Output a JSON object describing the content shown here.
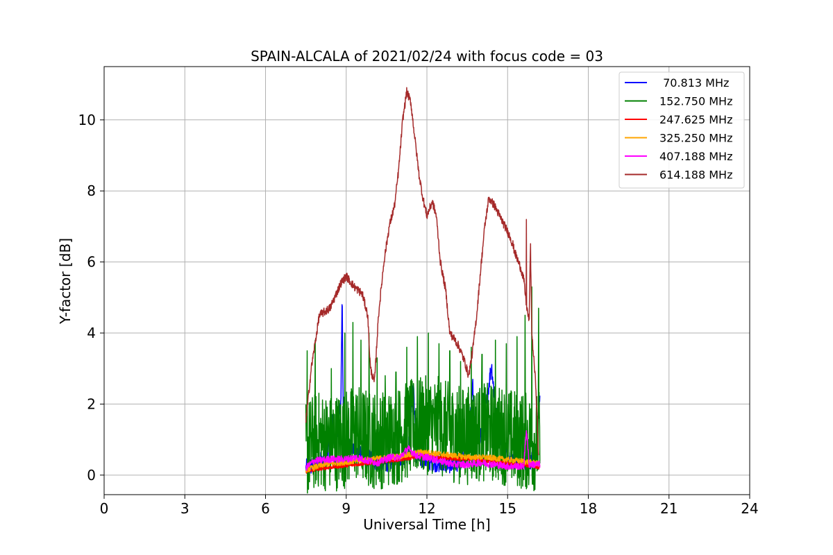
{
  "chart_data": {
    "type": "line",
    "title": "SPAIN-ALCALA of 2021/02/24 with focus code = 03",
    "xlabel": "Universal Time [h]",
    "ylabel": "Y-factor [dB]",
    "xlim": [
      0,
      24
    ],
    "ylim": [
      -0.55,
      11.5
    ],
    "xticks": [
      0,
      3,
      6,
      9,
      12,
      15,
      18,
      21,
      24
    ],
    "yticks": [
      0,
      2,
      4,
      6,
      8,
      10
    ],
    "grid": true,
    "legend_position": "top-right",
    "series": [
      {
        "name": " 70.813 MHz",
        "color": "#0000ff",
        "points": [
          [
            7.5,
            0.2
          ],
          [
            7.9,
            0.3
          ],
          [
            8.3,
            0.6
          ],
          [
            8.5,
            1.5
          ],
          [
            8.6,
            0.8
          ],
          [
            8.8,
            2.0
          ],
          [
            8.85,
            5.1
          ],
          [
            8.9,
            0.9
          ],
          [
            9.3,
            0.7
          ],
          [
            9.8,
            0.5
          ],
          [
            10.3,
            0.3
          ],
          [
            10.8,
            0.4
          ],
          [
            11.3,
            0.6
          ],
          [
            11.5,
            2.6
          ],
          [
            11.6,
            0.5
          ],
          [
            12.0,
            0.4
          ],
          [
            12.5,
            0.3
          ],
          [
            13.0,
            0.3
          ],
          [
            13.5,
            0.5
          ],
          [
            13.7,
            2.6
          ],
          [
            13.8,
            0.7
          ],
          [
            14.1,
            1.4
          ],
          [
            14.4,
            3.1
          ],
          [
            14.6,
            1.5
          ],
          [
            14.9,
            0.6
          ],
          [
            15.3,
            0.4
          ],
          [
            15.7,
            0.3
          ],
          [
            16.0,
            0.5
          ],
          [
            16.2,
            2.0
          ]
        ],
        "noise": 0.25
      },
      {
        "name": "152.750 MHz",
        "color": "#008000",
        "points": [
          [
            7.5,
            0.7
          ],
          [
            7.9,
            1.0
          ],
          [
            8.4,
            0.9
          ],
          [
            8.9,
            1.0
          ],
          [
            9.4,
            1.2
          ],
          [
            9.9,
            1.0
          ],
          [
            10.4,
            1.0
          ],
          [
            10.9,
            1.1
          ],
          [
            11.4,
            1.3
          ],
          [
            11.9,
            1.4
          ],
          [
            12.4,
            1.4
          ],
          [
            12.9,
            1.2
          ],
          [
            13.4,
            1.1
          ],
          [
            13.9,
            1.2
          ],
          [
            14.4,
            1.2
          ],
          [
            14.9,
            1.1
          ],
          [
            15.4,
            1.0
          ],
          [
            15.9,
            0.9
          ],
          [
            16.2,
            1.0
          ]
        ],
        "noise": 1.4,
        "spikes": [
          [
            7.55,
            3.5
          ],
          [
            7.85,
            3.8
          ],
          [
            8.45,
            3.0
          ],
          [
            8.95,
            4.0
          ],
          [
            9.25,
            4.3
          ],
          [
            9.55,
            3.8
          ],
          [
            9.85,
            4.0
          ],
          [
            10.15,
            3.3
          ],
          [
            10.45,
            2.8
          ],
          [
            10.85,
            2.9
          ],
          [
            11.25,
            3.6
          ],
          [
            11.65,
            3.9
          ],
          [
            12.05,
            4.0
          ],
          [
            12.45,
            3.7
          ],
          [
            12.85,
            3.5
          ],
          [
            13.25,
            3.2
          ],
          [
            13.65,
            3.6
          ],
          [
            14.05,
            3.4
          ],
          [
            14.55,
            3.8
          ],
          [
            14.95,
            3.7
          ],
          [
            15.35,
            3.9
          ],
          [
            15.65,
            4.5
          ],
          [
            15.9,
            5.3
          ],
          [
            16.15,
            4.7
          ]
        ]
      },
      {
        "name": "247.625 MHz",
        "color": "#ff0000",
        "points": [
          [
            7.5,
            0.1
          ],
          [
            8.2,
            0.2
          ],
          [
            8.8,
            0.25
          ],
          [
            9.4,
            0.3
          ],
          [
            10.0,
            0.35
          ],
          [
            10.6,
            0.4
          ],
          [
            11.2,
            0.45
          ],
          [
            11.8,
            0.55
          ],
          [
            12.4,
            0.5
          ],
          [
            13.0,
            0.45
          ],
          [
            13.6,
            0.45
          ],
          [
            14.2,
            0.4
          ],
          [
            14.8,
            0.35
          ],
          [
            15.4,
            0.3
          ],
          [
            16.0,
            0.25
          ],
          [
            16.2,
            0.2
          ]
        ],
        "noise": 0.05
      },
      {
        "name": "325.250 MHz",
        "color": "#ffa500",
        "points": [
          [
            7.5,
            0.15
          ],
          [
            8.2,
            0.3
          ],
          [
            8.8,
            0.35
          ],
          [
            9.4,
            0.4
          ],
          [
            10.0,
            0.45
          ],
          [
            10.6,
            0.5
          ],
          [
            11.2,
            0.55
          ],
          [
            11.8,
            0.65
          ],
          [
            12.4,
            0.6
          ],
          [
            13.0,
            0.55
          ],
          [
            13.6,
            0.5
          ],
          [
            14.2,
            0.5
          ],
          [
            14.8,
            0.45
          ],
          [
            15.4,
            0.4
          ],
          [
            16.0,
            0.35
          ],
          [
            16.2,
            0.3
          ]
        ],
        "noise": 0.08
      },
      {
        "name": "407.188 MHz",
        "color": "#ff00ff",
        "points": [
          [
            7.5,
            0.2
          ],
          [
            7.8,
            0.4
          ],
          [
            8.4,
            0.45
          ],
          [
            9.0,
            0.45
          ],
          [
            9.4,
            0.5
          ],
          [
            9.8,
            0.4
          ],
          [
            10.2,
            0.35
          ],
          [
            10.6,
            0.5
          ],
          [
            11.0,
            0.5
          ],
          [
            11.3,
            0.75
          ],
          [
            11.6,
            0.55
          ],
          [
            12.0,
            0.5
          ],
          [
            12.5,
            0.4
          ],
          [
            13.0,
            0.3
          ],
          [
            13.5,
            0.3
          ],
          [
            14.0,
            0.35
          ],
          [
            14.5,
            0.3
          ],
          [
            15.0,
            0.25
          ],
          [
            15.6,
            0.25
          ],
          [
            15.7,
            1.3
          ],
          [
            15.8,
            0.3
          ],
          [
            16.2,
            0.3
          ]
        ],
        "noise": 0.1
      },
      {
        "name": "614.188 MHz",
        "color": "#a52a2a",
        "points": [
          [
            7.5,
            1.5
          ],
          [
            7.7,
            3.0
          ],
          [
            8.0,
            4.5
          ],
          [
            8.4,
            4.7
          ],
          [
            8.8,
            5.4
          ],
          [
            9.0,
            5.6
          ],
          [
            9.3,
            5.3
          ],
          [
            9.6,
            5.1
          ],
          [
            9.8,
            4.5
          ],
          [
            9.9,
            3.0
          ],
          [
            10.05,
            2.6
          ],
          [
            10.2,
            4.5
          ],
          [
            10.4,
            6.0
          ],
          [
            10.6,
            7.0
          ],
          [
            10.8,
            7.6
          ],
          [
            10.95,
            8.6
          ],
          [
            11.1,
            10.0
          ],
          [
            11.25,
            10.8
          ],
          [
            11.4,
            10.5
          ],
          [
            11.55,
            9.5
          ],
          [
            11.7,
            8.5
          ],
          [
            11.85,
            7.8
          ],
          [
            12.0,
            7.3
          ],
          [
            12.2,
            7.7
          ],
          [
            12.35,
            7.3
          ],
          [
            12.5,
            6.0
          ],
          [
            12.7,
            5.2
          ],
          [
            12.85,
            4.0
          ],
          [
            13.05,
            3.8
          ],
          [
            13.2,
            3.6
          ],
          [
            13.4,
            3.2
          ],
          [
            13.55,
            2.8
          ],
          [
            13.7,
            3.5
          ],
          [
            13.85,
            4.5
          ],
          [
            14.0,
            5.8
          ],
          [
            14.15,
            7.0
          ],
          [
            14.3,
            7.8
          ],
          [
            14.5,
            7.6
          ],
          [
            14.7,
            7.3
          ],
          [
            14.9,
            7.0
          ],
          [
            15.1,
            6.7
          ],
          [
            15.3,
            6.2
          ],
          [
            15.5,
            5.8
          ],
          [
            15.6,
            5.5
          ],
          [
            15.7,
            4.8
          ],
          [
            15.8,
            4.3
          ],
          [
            15.85,
            6.5
          ],
          [
            15.9,
            4.0
          ],
          [
            16.05,
            2.5
          ],
          [
            16.15,
            0.5
          ]
        ],
        "noise": 0.12,
        "spikes": [
          [
            15.7,
            7.2
          ],
          [
            15.2,
            6.6
          ]
        ]
      }
    ]
  }
}
